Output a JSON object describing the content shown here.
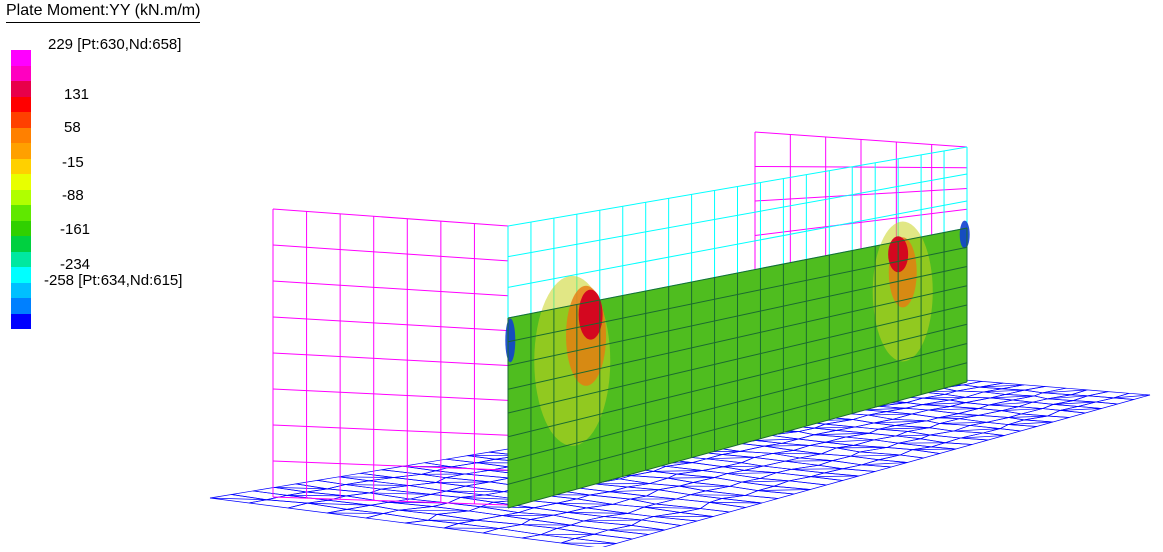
{
  "legend": {
    "title": "Plate Moment:YY (kN.m/m)",
    "max_label": "229 [Pt:630,Nd:658]",
    "min_label": "-258 [Pt:634,Nd:615]",
    "values": [
      "131",
      "58",
      "-15",
      "-88",
      "-161",
      "-234"
    ],
    "colors": [
      "#ff00ff",
      "#ff00c0",
      "#e8004a",
      "#ff0000",
      "#ff4000",
      "#ff8000",
      "#ffa000",
      "#ffd000",
      "#e8ff00",
      "#b0ff00",
      "#60e800",
      "#30d000",
      "#00d040",
      "#00e8a0",
      "#00ffff",
      "#00c0ff",
      "#0080ff",
      "#0000ff"
    ]
  },
  "model_colors": {
    "result_wall_base": "#4fbd1f",
    "hot": "#d40020",
    "warm": "#e87a10",
    "mild": "#c8d420",
    "cold": "#1040d0",
    "left_wall_mesh": "#ff00ff",
    "top_wall_mesh": "#00ffff",
    "slab_mesh": "#0000ff",
    "result_wall_grid": "#1a6a30"
  }
}
